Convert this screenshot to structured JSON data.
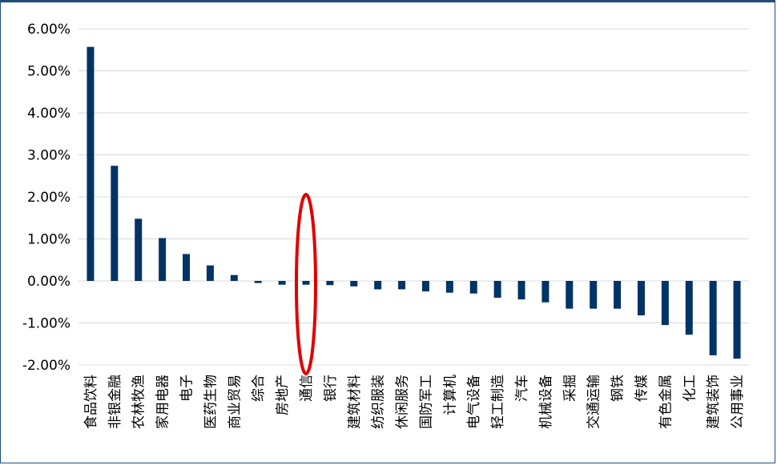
{
  "chart_data": {
    "type": "bar",
    "title": "",
    "xlabel": "",
    "ylabel": "",
    "ylim": [
      -2,
      6
    ],
    "y_ticks": [
      6,
      5,
      4,
      3,
      2,
      1,
      0,
      -1,
      -2
    ],
    "y_tick_labels": [
      "6.00%",
      "5.00%",
      "4.00%",
      "3.00%",
      "2.00%",
      "1.00%",
      "0.00%",
      "-1.00%",
      "-2.00%"
    ],
    "grid": true,
    "bar_color": "#003366",
    "highlight_color": "#e00000",
    "highlight_category": "通信",
    "categories": [
      "食品饮料",
      "非银金融",
      "农林牧渔",
      "家用电器",
      "电子",
      "医药生物",
      "商业贸易",
      "综合",
      "房地产",
      "通信",
      "银行",
      "建筑材料",
      "纺织服装",
      "休闲服务",
      "国防军工",
      "计算机",
      "电气设备",
      "轻工制造",
      "汽车",
      "机械设备",
      "采掘",
      "交通运输",
      "钢铁",
      "传媒",
      "有色金属",
      "化工",
      "建筑装饰",
      "公用事业"
    ],
    "values": [
      5.57,
      2.74,
      1.48,
      1.02,
      0.64,
      0.37,
      0.14,
      -0.05,
      -0.09,
      -0.09,
      -0.1,
      -0.13,
      -0.2,
      -0.2,
      -0.25,
      -0.28,
      -0.3,
      -0.4,
      -0.44,
      -0.51,
      -0.66,
      -0.66,
      -0.66,
      -0.82,
      -1.05,
      -1.28,
      -1.77,
      -1.85
    ]
  }
}
